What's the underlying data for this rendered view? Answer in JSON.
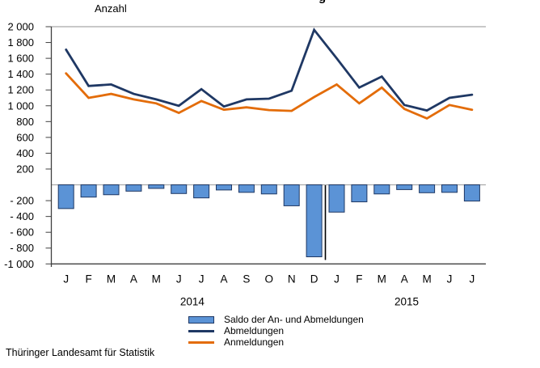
{
  "title_fragment": "g",
  "y_axis_title": "Anzahl",
  "source": "Thüringer Landesamt für Statistik",
  "colors": {
    "bar_fill": "#5B93D6",
    "bar_border": "#1F3864",
    "abmeldungen_line": "#1F3864",
    "anmeldungen_line": "#E36C09",
    "zero_gridline": "#ABABAB",
    "top_gridline": "#909090",
    "axis": "#404040",
    "year_divider": "#000000"
  },
  "chart_data": {
    "type": "combo-bar-line",
    "title": "",
    "ylabel": "Anzahl",
    "ylim": [
      -1000,
      2000
    ],
    "grid": "top and zero lines only",
    "legend_position": "bottom",
    "x_labels": [
      "J",
      "F",
      "M",
      "A",
      "M",
      "J",
      "J",
      "A",
      "S",
      "O",
      "N",
      "D",
      "J",
      "F",
      "M",
      "A",
      "M",
      "J",
      "J"
    ],
    "x_year_groups": [
      {
        "label": "2014",
        "x_index": 5.6
      },
      {
        "label": "2015",
        "x_index": 15.1
      }
    ],
    "y_ticks": [
      {
        "v": 2000,
        "label": "2 000"
      },
      {
        "v": 1800,
        "label": "1 800"
      },
      {
        "v": 1600,
        "label": "1 600"
      },
      {
        "v": 1400,
        "label": "1 400"
      },
      {
        "v": 1200,
        "label": "1 200"
      },
      {
        "v": 1000,
        "label": "1 000"
      },
      {
        "v": 800,
        "label": "800"
      },
      {
        "v": 600,
        "label": "600"
      },
      {
        "v": 400,
        "label": "400"
      },
      {
        "v": 200,
        "label": "200"
      },
      {
        "v": -200,
        "label": "- 200"
      },
      {
        "v": -400,
        "label": "- 400"
      },
      {
        "v": -600,
        "label": "- 600"
      },
      {
        "v": -800,
        "label": "- 800"
      },
      {
        "v": -1000,
        "label": "-1 000"
      }
    ],
    "series": [
      {
        "name": "Saldo der An- und Abmeldungen",
        "type": "bar",
        "color": "#5B93D6",
        "values": [
          -300,
          -155,
          -125,
          -80,
          -45,
          -110,
          -165,
          -65,
          -95,
          -115,
          -265,
          -910,
          -345,
          -215,
          -115,
          -60,
          -100,
          -95,
          -205
        ]
      },
      {
        "name": "Abmeldungen",
        "type": "line",
        "color": "#1F3864",
        "values": [
          1710,
          1250,
          1270,
          1150,
          1080,
          1000,
          1210,
          990,
          1080,
          1090,
          1190,
          1960,
          1600,
          1230,
          1370,
          1010,
          940,
          1100,
          1140
        ]
      },
      {
        "name": "Anmeldungen",
        "type": "line",
        "color": "#E36C09",
        "values": [
          1410,
          1100,
          1150,
          1080,
          1030,
          910,
          1060,
          950,
          980,
          945,
          935,
          1110,
          1270,
          1030,
          1230,
          960,
          840,
          1010,
          950
        ]
      }
    ],
    "annotations": [
      {
        "type": "vline",
        "desc": "year divider after December 2014",
        "from_v": 0,
        "to_v": -950
      }
    ]
  }
}
